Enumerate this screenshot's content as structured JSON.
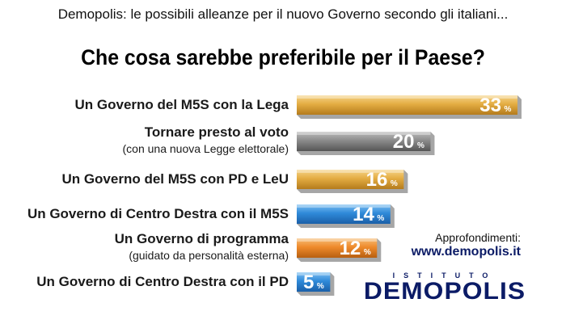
{
  "header": {
    "subtitle": "Demopolis: le possibili alleanze per il nuovo Governo secondo gli italiani...",
    "title": "Che cosa sarebbe preferibile per il Paese?"
  },
  "chart_data": {
    "type": "bar",
    "orientation": "horizontal",
    "value_suffix": "%",
    "categories": [
      "Un Governo del M5S con la Lega",
      "Tornare presto al voto",
      "Un Governo del M5S con PD e LeU",
      "Un Governo di Centro Destra con il M5S",
      "Un Governo di programma",
      "Un Governo di Centro Destra con il PD"
    ],
    "subcategories": [
      "",
      "(con una nuova Legge elettorale)",
      "",
      "",
      "(guidato da personalità esterna)",
      ""
    ],
    "values": [
      33,
      20,
      16,
      14,
      12,
      5
    ],
    "colors": [
      "#e0a83a",
      "#8a8a8a",
      "#e0a83a",
      "#2e86d8",
      "#ec8524",
      "#2e86d8"
    ],
    "xlim": [
      0,
      33
    ],
    "grid": false,
    "legend": "none"
  },
  "footer": {
    "more_label": "Approfondimenti:",
    "website": "www.demopolis.it",
    "logo_top": "ISTITUTO",
    "logo_main": "DEMOPOLIS"
  }
}
